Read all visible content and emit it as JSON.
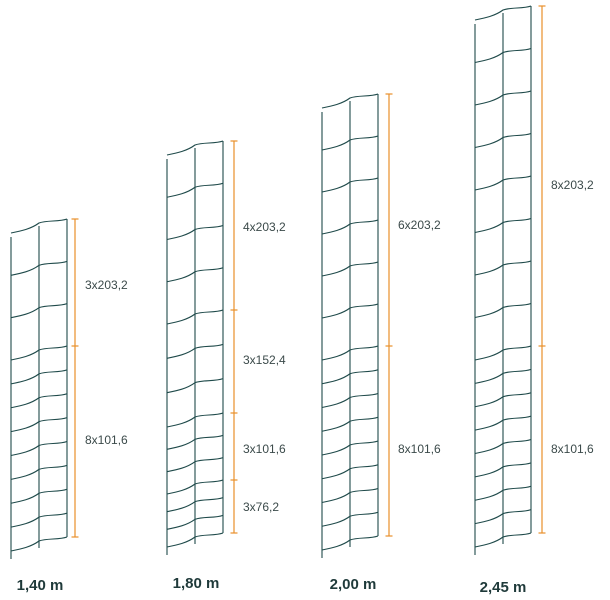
{
  "colors": {
    "mesh": "#1f4a4a",
    "dimension": "#e8902a",
    "text": "#3b4a4a",
    "heading": "#1f3a3a"
  },
  "panels": [
    {
      "height_label": "1,40 m",
      "segments": [
        {
          "label": "3x203,2",
          "count": 3
        },
        {
          "label": "8x101,6",
          "count": 8
        }
      ]
    },
    {
      "height_label": "1,80 m",
      "segments": [
        {
          "label": "4x203,2",
          "count": 4
        },
        {
          "label": "3x152,4",
          "count": 3
        },
        {
          "label": "3x101,6",
          "count": 3
        },
        {
          "label": "3x76,2",
          "count": 3
        }
      ]
    },
    {
      "height_label": "2,00 m",
      "segments": [
        {
          "label": "6x203,2",
          "count": 6
        },
        {
          "label": "8x101,6",
          "count": 8
        }
      ]
    },
    {
      "height_label": "2,45 m",
      "segments": [
        {
          "label": "8x203,2",
          "count": 8
        },
        {
          "label": "8x101,6",
          "count": 8
        }
      ]
    }
  ]
}
